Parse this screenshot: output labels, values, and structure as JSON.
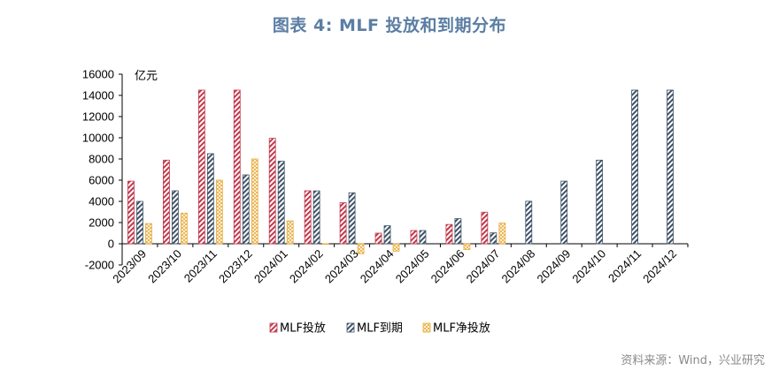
{
  "title": "图表 4:  MLF 投放和到期分布",
  "source": "资料来源：Wind，兴业研究",
  "chart_data": {
    "type": "bar",
    "unit_label": "亿元",
    "categories": [
      "2023/09",
      "2023/10",
      "2023/11",
      "2023/12",
      "2024/01",
      "2024/02",
      "2024/03",
      "2024/04",
      "2024/05",
      "2024/06",
      "2024/07",
      "2024/08",
      "2024/09",
      "2024/10",
      "2024/11",
      "2024/12"
    ],
    "series": [
      {
        "name": "MLF投放",
        "color": "#c0384b",
        "pattern": "diagonal-stripes",
        "values": [
          5910,
          7890,
          14500,
          14500,
          9950,
          5000,
          3870,
          1000,
          1250,
          1820,
          2980,
          null,
          null,
          null,
          null,
          null
        ]
      },
      {
        "name": "MLF到期",
        "color": "#3f5368",
        "pattern": "diagonal-stripes",
        "values": [
          4000,
          5000,
          8500,
          6500,
          7790,
          4990,
          4810,
          1700,
          1250,
          2370,
          1030,
          4010,
          5910,
          7890,
          14500,
          14500
        ]
      },
      {
        "name": "MLF净投放",
        "color": "#e8ad3e",
        "pattern": "crosshatch",
        "values": [
          1910,
          2890,
          6000,
          8000,
          2160,
          10,
          -940,
          -700,
          0,
          -550,
          1950,
          null,
          null,
          null,
          null,
          null
        ]
      }
    ],
    "ylim": [
      -2000,
      16000
    ],
    "yticks": [
      -2000,
      0,
      2000,
      4000,
      6000,
      8000,
      10000,
      12000,
      14000,
      16000
    ],
    "grid": false,
    "legend_position": "bottom"
  }
}
